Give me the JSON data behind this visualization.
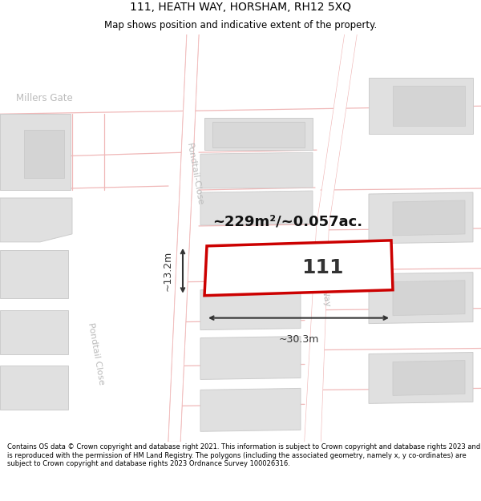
{
  "title": "111, HEATH WAY, HORSHAM, RH12 5XQ",
  "subtitle": "Map shows position and indicative extent of the property.",
  "footer": "Contains OS data © Crown copyright and database right 2021. This information is subject to Crown copyright and database rights 2023 and is reproduced with the permission of HM Land Registry. The polygons (including the associated geometry, namely x, y co-ordinates) are subject to Crown copyright and database rights 2023 Ordnance Survey 100026316.",
  "map_bg": "#f7f7f7",
  "road_line_color": "#f0b8b8",
  "road_fill_color": "#ffffff",
  "building_fill": "#e0e0e0",
  "building_edge": "#cccccc",
  "highlight_fill": "#ffffff",
  "highlight_edge": "#cc0000",
  "street_label_color": "#bbbbbb",
  "area_text": "~229m²/~0.057ac.",
  "property_number": "111",
  "dim_width": "~30.3m",
  "dim_height": "~13.2m"
}
